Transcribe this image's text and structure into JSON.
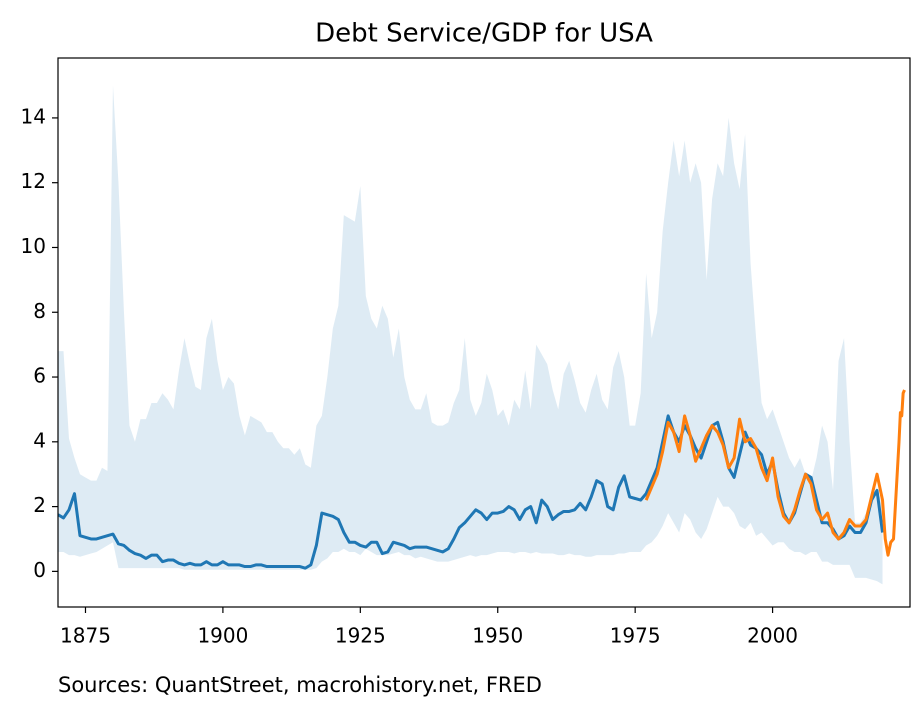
{
  "chart_data": {
    "type": "line",
    "title": "Debt Service/GDP for USA",
    "source": "Sources: QuantStreet, macrohistory.net, FRED",
    "xlim": [
      1870,
      2025
    ],
    "ylim": [
      -1.1,
      15.85
    ],
    "xticks": [
      1875,
      1900,
      1925,
      1950,
      1975,
      2000
    ],
    "yticks": [
      0,
      2,
      4,
      6,
      8,
      10,
      12,
      14
    ],
    "grid": false,
    "x": [
      1870,
      1871,
      1872,
      1873,
      1874,
      1875,
      1876,
      1877,
      1878,
      1879,
      1880,
      1881,
      1882,
      1883,
      1884,
      1885,
      1886,
      1887,
      1888,
      1889,
      1890,
      1891,
      1892,
      1893,
      1894,
      1895,
      1896,
      1897,
      1898,
      1899,
      1900,
      1901,
      1902,
      1903,
      1904,
      1905,
      1906,
      1907,
      1908,
      1909,
      1910,
      1911,
      1912,
      1913,
      1914,
      1915,
      1916,
      1917,
      1918,
      1919,
      1920,
      1921,
      1922,
      1923,
      1924,
      1925,
      1926,
      1927,
      1928,
      1929,
      1930,
      1931,
      1932,
      1933,
      1934,
      1935,
      1936,
      1937,
      1938,
      1939,
      1940,
      1941,
      1942,
      1943,
      1944,
      1945,
      1946,
      1947,
      1948,
      1949,
      1950,
      1951,
      1952,
      1953,
      1954,
      1955,
      1956,
      1957,
      1958,
      1959,
      1960,
      1961,
      1962,
      1963,
      1964,
      1965,
      1966,
      1967,
      1968,
      1969,
      1970,
      1971,
      1972,
      1973,
      1974,
      1975,
      1976,
      1977,
      1978,
      1979,
      1980,
      1981,
      1982,
      1983,
      1984,
      1985,
      1986,
      1987,
      1988,
      1989,
      1990,
      1991,
      1992,
      1993,
      1994,
      1995,
      1996,
      1997,
      1998,
      1999,
      2000,
      2001,
      2002,
      2003,
      2004,
      2005,
      2006,
      2007,
      2008,
      2009,
      2010,
      2011,
      2012,
      2013,
      2014,
      2015,
      2016,
      2017,
      2018,
      2019,
      2020
    ],
    "band": {
      "color": "#1f77b4",
      "alpha": 0.15,
      "upper": [
        6.8,
        6.8,
        4.1,
        3.5,
        3.0,
        2.9,
        2.8,
        2.8,
        3.2,
        3.1,
        15.0,
        12.0,
        8.0,
        4.5,
        4.0,
        4.7,
        4.7,
        5.2,
        5.2,
        5.5,
        5.3,
        5.0,
        6.2,
        7.2,
        6.4,
        5.7,
        5.6,
        7.2,
        7.8,
        6.5,
        5.6,
        6.0,
        5.8,
        4.8,
        4.2,
        4.8,
        4.7,
        4.6,
        4.3,
        4.3,
        4.0,
        3.8,
        3.8,
        3.6,
        3.8,
        3.3,
        3.2,
        4.5,
        4.8,
        6.0,
        7.5,
        8.2,
        11.0,
        10.9,
        10.8,
        11.9,
        8.5,
        7.8,
        7.5,
        8.2,
        7.8,
        6.6,
        7.5,
        6.0,
        5.3,
        5.0,
        5.0,
        5.5,
        4.6,
        4.5,
        4.5,
        4.6,
        5.2,
        5.6,
        7.2,
        5.3,
        4.8,
        5.2,
        6.1,
        5.6,
        4.8,
        5.0,
        4.5,
        5.3,
        5.0,
        6.2,
        5.0,
        7.0,
        6.7,
        6.4,
        5.6,
        5.0,
        6.1,
        6.5,
        5.9,
        5.2,
        4.9,
        5.6,
        6.1,
        5.3,
        5.0,
        6.3,
        6.8,
        6.0,
        4.5,
        4.5,
        5.5,
        9.2,
        7.2,
        8.0,
        10.5,
        12.0,
        13.3,
        12.2,
        13.3,
        12.0,
        12.6,
        12.0,
        9.0,
        11.5,
        12.6,
        12.2,
        14.0,
        12.6,
        11.8,
        13.5,
        9.5,
        7.2,
        5.2,
        4.7,
        5.0,
        4.5,
        4.0,
        3.5,
        3.2,
        3.5,
        3.0,
        2.8,
        3.5,
        4.5,
        4.0,
        2.5,
        6.5,
        7.2,
        4.0,
        1.5,
        1.5,
        1.8,
        2.2,
        2.6,
        2.0
      ],
      "lower": [
        0.6,
        0.6,
        0.5,
        0.5,
        0.45,
        0.5,
        0.55,
        0.6,
        0.7,
        0.8,
        0.9,
        0.1,
        0.1,
        0.1,
        0.1,
        0.1,
        0.1,
        0.1,
        0.1,
        0.1,
        0.1,
        0.1,
        0.1,
        0.05,
        0.05,
        0.05,
        0.05,
        0.05,
        0.05,
        0.05,
        0.05,
        0.05,
        0.05,
        0.05,
        0.05,
        0.05,
        0.05,
        0.05,
        0.05,
        0.05,
        0.05,
        0.05,
        0.05,
        0.05,
        0.05,
        0.05,
        0.05,
        0.1,
        0.3,
        0.4,
        0.6,
        0.6,
        0.7,
        0.6,
        0.6,
        0.5,
        0.7,
        0.6,
        0.5,
        0.5,
        0.5,
        0.55,
        0.6,
        0.5,
        0.5,
        0.4,
        0.45,
        0.4,
        0.35,
        0.3,
        0.3,
        0.3,
        0.35,
        0.4,
        0.45,
        0.5,
        0.45,
        0.5,
        0.5,
        0.55,
        0.6,
        0.6,
        0.6,
        0.55,
        0.6,
        0.6,
        0.55,
        0.6,
        0.55,
        0.55,
        0.55,
        0.5,
        0.5,
        0.55,
        0.5,
        0.5,
        0.45,
        0.45,
        0.5,
        0.5,
        0.5,
        0.5,
        0.55,
        0.55,
        0.6,
        0.6,
        0.6,
        0.8,
        0.9,
        1.1,
        1.4,
        1.8,
        1.5,
        1.2,
        1.8,
        1.6,
        1.2,
        1.0,
        1.3,
        1.8,
        2.3,
        2.0,
        2.0,
        1.8,
        1.4,
        1.3,
        1.5,
        1.1,
        1.2,
        1.0,
        0.8,
        0.9,
        0.9,
        0.7,
        0.6,
        0.6,
        0.5,
        0.6,
        0.6,
        0.3,
        0.3,
        0.2,
        0.2,
        0.2,
        0.2,
        -0.2,
        -0.2,
        -0.2,
        -0.25,
        -0.3,
        -0.4
      ]
    },
    "series": [
      {
        "color": "#1f77b4",
        "values": [
          1.75,
          1.65,
          1.9,
          2.4,
          1.1,
          1.05,
          1.0,
          1.0,
          1.05,
          1.1,
          1.15,
          0.85,
          0.8,
          0.65,
          0.55,
          0.5,
          0.4,
          0.5,
          0.5,
          0.3,
          0.35,
          0.35,
          0.25,
          0.2,
          0.25,
          0.2,
          0.2,
          0.3,
          0.2,
          0.2,
          0.3,
          0.2,
          0.2,
          0.2,
          0.15,
          0.15,
          0.2,
          0.2,
          0.15,
          0.15,
          0.15,
          0.15,
          0.15,
          0.15,
          0.15,
          0.1,
          0.2,
          0.8,
          1.8,
          1.75,
          1.7,
          1.6,
          1.2,
          0.9,
          0.9,
          0.8,
          0.75,
          0.9,
          0.9,
          0.55,
          0.6,
          0.9,
          0.85,
          0.8,
          0.7,
          0.75,
          0.75,
          0.75,
          0.7,
          0.65,
          0.6,
          0.7,
          1.0,
          1.35,
          1.5,
          1.7,
          1.9,
          1.8,
          1.6,
          1.8,
          1.8,
          1.85,
          2.0,
          1.9,
          1.6,
          1.9,
          2.0,
          1.5,
          2.2,
          2.0,
          1.6,
          1.75,
          1.85,
          1.85,
          1.9,
          2.1,
          1.9,
          2.3,
          2.8,
          2.7,
          2.0,
          1.9,
          2.6,
          2.95,
          2.3,
          2.25,
          2.2,
          2.4,
          2.8,
          3.2,
          4.0,
          4.8,
          4.3,
          4.0,
          4.5,
          4.2,
          3.8,
          3.5,
          4.0,
          4.5,
          4.6,
          4.0,
          3.2,
          2.9,
          3.6,
          4.3,
          3.9,
          3.8,
          3.6,
          3.0,
          3.4,
          2.5,
          1.8,
          1.5,
          1.8,
          2.4,
          3.0,
          2.9,
          2.2,
          1.5,
          1.5,
          1.3,
          1.0,
          1.1,
          1.4,
          1.2,
          1.2,
          1.5,
          2.2,
          2.5,
          1.2
        ]
      },
      {
        "color": "#ff7f0e",
        "x": [
          1977,
          1978,
          1979,
          1980,
          1981,
          1982,
          1983,
          1984,
          1985,
          1986,
          1987,
          1988,
          1989,
          1990,
          1991,
          1992,
          1993,
          1994,
          1995,
          1996,
          1997,
          1998,
          1999,
          2000,
          2001,
          2002,
          2003,
          2004,
          2005,
          2006,
          2007,
          2008,
          2009,
          2010,
          2011,
          2012,
          2013,
          2014,
          2015,
          2016,
          2017,
          2018,
          2019,
          2020,
          2020.5,
          2021,
          2021.5,
          2022,
          2022.5,
          2023,
          2023.25,
          2023.5,
          2023.75,
          2024
        ],
        "values": [
          2.2,
          2.6,
          3.0,
          3.7,
          4.6,
          4.3,
          3.7,
          4.8,
          4.2,
          3.4,
          3.8,
          4.2,
          4.5,
          4.3,
          3.9,
          3.2,
          3.5,
          4.7,
          4.0,
          4.1,
          3.8,
          3.2,
          2.8,
          3.5,
          2.3,
          1.7,
          1.5,
          1.9,
          2.5,
          3.0,
          2.7,
          1.9,
          1.6,
          1.8,
          1.2,
          1.0,
          1.2,
          1.6,
          1.4,
          1.4,
          1.6,
          2.3,
          3.0,
          2.2,
          1.0,
          0.5,
          0.9,
          1.0,
          2.5,
          4.0,
          4.9,
          4.8,
          5.5,
          5.6
        ]
      }
    ]
  }
}
